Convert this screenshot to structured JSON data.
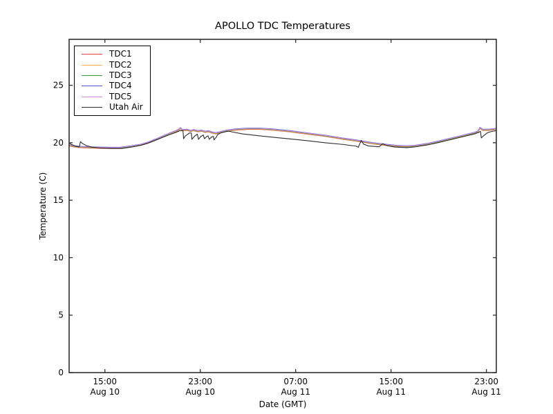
{
  "title": "APOLLO TDC Temperatures",
  "chart_data": {
    "type": "line",
    "title": "APOLLO TDC Temperatures",
    "xlabel": "Date (GMT)",
    "ylabel": "Temperature (C)",
    "x_unit": "hours_since_Aug10_12:00_GMT",
    "xlim": [
      0,
      35.83
    ],
    "ylim": [
      0,
      29
    ],
    "yticks": [
      0,
      5,
      10,
      15,
      20,
      25
    ],
    "xticks": [
      {
        "h": 3,
        "time": "15:00",
        "date": "Aug 10"
      },
      {
        "h": 11,
        "time": "23:00",
        "date": "Aug 10"
      },
      {
        "h": 19,
        "time": "07:00",
        "date": "Aug 11"
      },
      {
        "h": 27,
        "time": "15:00",
        "date": "Aug 11"
      },
      {
        "h": 35,
        "time": "23:00",
        "date": "Aug 11"
      }
    ],
    "grid": false,
    "legend_position": "upper left",
    "axis_color": "#2e2e2e",
    "background": "#ffffff",
    "tdc_base": [
      [
        0,
        19.78
      ],
      [
        0.3,
        19.7
      ],
      [
        0.8,
        19.64
      ],
      [
        1.5,
        19.6
      ],
      [
        2.5,
        19.57
      ],
      [
        3.5,
        19.55
      ],
      [
        4.3,
        19.55
      ],
      [
        4.6,
        19.6
      ],
      [
        5.2,
        19.68
      ],
      [
        6,
        19.82
      ],
      [
        6.6,
        20.0
      ],
      [
        7.2,
        20.25
      ],
      [
        7.8,
        20.52
      ],
      [
        8.4,
        20.78
      ],
      [
        9.0,
        21.02
      ],
      [
        9.25,
        21.18
      ],
      [
        9.32,
        21.27
      ],
      [
        9.5,
        21.1
      ],
      [
        9.9,
        21.12
      ],
      [
        10.2,
        21.02
      ],
      [
        10.45,
        21.1
      ],
      [
        10.8,
        21.0
      ],
      [
        11.1,
        21.05
      ],
      [
        11.4,
        20.95
      ],
      [
        11.7,
        21.0
      ],
      [
        12.0,
        20.88
      ],
      [
        12.3,
        20.82
      ],
      [
        12.7,
        20.92
      ],
      [
        13.2,
        21.05
      ],
      [
        14,
        21.15
      ],
      [
        15,
        21.22
      ],
      [
        16,
        21.22
      ],
      [
        17,
        21.15
      ],
      [
        18.5,
        21.0
      ],
      [
        20,
        20.8
      ],
      [
        21.5,
        20.6
      ],
      [
        23,
        20.35
      ],
      [
        24.3,
        20.15
      ],
      [
        25.5,
        19.95
      ],
      [
        26.5,
        19.82
      ],
      [
        27.5,
        19.72
      ],
      [
        28.3,
        19.68
      ],
      [
        29,
        19.72
      ],
      [
        30,
        19.88
      ],
      [
        31,
        20.1
      ],
      [
        32,
        20.35
      ],
      [
        33,
        20.6
      ],
      [
        34,
        20.85
      ],
      [
        34.3,
        20.98
      ],
      [
        34.45,
        21.3
      ],
      [
        34.7,
        21.12
      ],
      [
        35.2,
        21.12
      ],
      [
        35.83,
        21.2
      ]
    ],
    "series": [
      {
        "name": "TDC1",
        "color": "#e83e3e",
        "base": "tdc_base",
        "offset": -0.05
      },
      {
        "name": "TDC2",
        "color": "#ffac3e",
        "base": "tdc_base",
        "offset": -0.025
      },
      {
        "name": "TDC3",
        "color": "#3f9b3f",
        "base": "tdc_base",
        "offset": 0.0
      },
      {
        "name": "TDC4",
        "color": "#4a50e0",
        "base": "tdc_base",
        "offset": 0.055
      },
      {
        "name": "TDC5",
        "color": "#d68ad6",
        "base": "tdc_base",
        "offset": 0.03
      },
      {
        "name": "Utah Air",
        "color": "#2b2b2b",
        "points": [
          [
            0,
            20.0
          ],
          [
            0.2,
            19.85
          ],
          [
            0.5,
            19.72
          ],
          [
            0.85,
            19.63
          ],
          [
            0.95,
            20.1
          ],
          [
            1.1,
            19.95
          ],
          [
            1.45,
            19.75
          ],
          [
            1.9,
            19.62
          ],
          [
            2.6,
            19.55
          ],
          [
            3.5,
            19.5
          ],
          [
            4.4,
            19.5
          ],
          [
            5.2,
            19.62
          ],
          [
            6,
            19.78
          ],
          [
            6.6,
            19.96
          ],
          [
            7.2,
            20.2
          ],
          [
            7.8,
            20.45
          ],
          [
            8.4,
            20.7
          ],
          [
            9.0,
            20.92
          ],
          [
            9.3,
            21.05
          ],
          [
            9.55,
            21.05
          ],
          [
            9.6,
            20.35
          ],
          [
            9.75,
            20.6
          ],
          [
            10.1,
            20.85
          ],
          [
            10.25,
            20.85
          ],
          [
            10.3,
            20.3
          ],
          [
            10.5,
            20.55
          ],
          [
            10.75,
            20.75
          ],
          [
            10.85,
            20.3
          ],
          [
            11.05,
            20.55
          ],
          [
            11.25,
            20.68
          ],
          [
            11.35,
            20.35
          ],
          [
            11.55,
            20.55
          ],
          [
            11.65,
            20.6
          ],
          [
            11.75,
            20.3
          ],
          [
            11.95,
            20.5
          ],
          [
            12.1,
            20.55
          ],
          [
            12.15,
            20.25
          ],
          [
            12.35,
            20.5
          ],
          [
            12.45,
            20.7
          ],
          [
            12.7,
            20.85
          ],
          [
            13.2,
            20.98
          ],
          [
            13.4,
            21.0
          ],
          [
            14.5,
            20.78
          ],
          [
            16,
            20.6
          ],
          [
            17.4,
            20.45
          ],
          [
            18.6,
            20.33
          ],
          [
            20,
            20.18
          ],
          [
            21.5,
            20.0
          ],
          [
            23,
            19.85
          ],
          [
            24.1,
            19.7
          ],
          [
            24.25,
            19.6
          ],
          [
            24.5,
            20.2
          ],
          [
            24.7,
            19.88
          ],
          [
            25.1,
            19.72
          ],
          [
            26,
            19.65
          ],
          [
            26.3,
            19.92
          ],
          [
            26.7,
            19.74
          ],
          [
            27.3,
            19.63
          ],
          [
            28.3,
            19.58
          ],
          [
            29,
            19.64
          ],
          [
            30,
            19.8
          ],
          [
            31,
            20.02
          ],
          [
            32,
            20.27
          ],
          [
            33,
            20.52
          ],
          [
            34,
            20.77
          ],
          [
            34.35,
            20.9
          ],
          [
            34.5,
            21.0
          ],
          [
            34.57,
            20.42
          ],
          [
            34.75,
            20.6
          ],
          [
            35.1,
            20.88
          ],
          [
            35.5,
            21.0
          ],
          [
            35.83,
            21.05
          ]
        ]
      }
    ]
  }
}
